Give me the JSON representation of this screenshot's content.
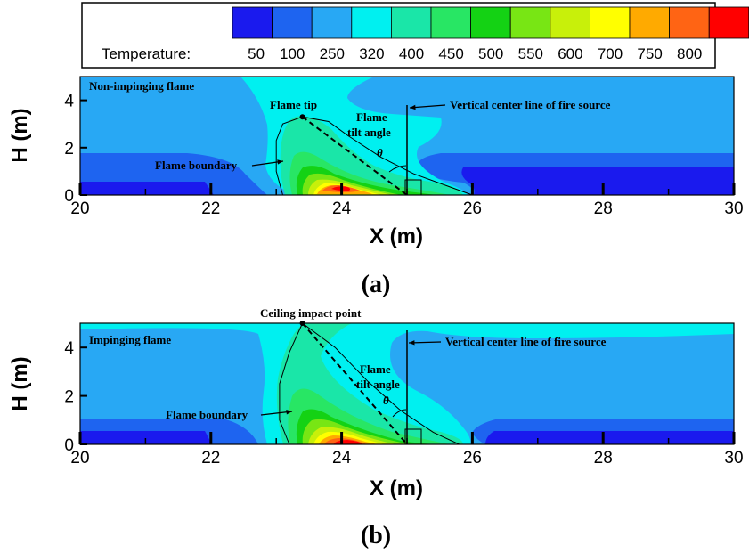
{
  "colorbar": {
    "title": "Temperature:",
    "levels": [
      "50",
      "100",
      "250",
      "320",
      "400",
      "450",
      "500",
      "550",
      "600",
      "700",
      "750",
      "800"
    ],
    "colors": [
      "#1a1aee",
      "#1e64f0",
      "#28a8f4",
      "#00f0f0",
      "#1ae6a8",
      "#28e664",
      "#14d214",
      "#78e614",
      "#c8f00a",
      "#ffff00",
      "#ffaa00",
      "#ff6414",
      "#ff0000"
    ]
  },
  "chart_data": [
    {
      "type": "heatmap",
      "panel_label": "(a)",
      "xlabel": "X (m)",
      "ylabel": "H (m)",
      "xlim": [
        20,
        30
      ],
      "ylim": [
        0,
        5
      ],
      "xticks": [
        "20",
        "22",
        "24",
        "26",
        "28",
        "30"
      ],
      "yticks": [
        "0",
        "2",
        "4"
      ],
      "flame_boundary": [
        [
          23.1,
          0.0
        ],
        [
          23.0,
          1.0
        ],
        [
          23.0,
          2.3
        ],
        [
          23.1,
          3.0
        ],
        [
          23.4,
          3.3
        ],
        [
          23.8,
          3.1
        ],
        [
          24.1,
          2.5
        ],
        [
          24.6,
          1.6
        ],
        [
          25.1,
          0.9
        ],
        [
          25.6,
          0.4
        ],
        [
          26.0,
          0.0
        ]
      ],
      "flame_tip": [
        23.4,
        3.3
      ],
      "tilt_line": [
        [
          23.4,
          3.3
        ],
        [
          25.0,
          0.0
        ]
      ],
      "center_line_x": 25.0,
      "annotations": {
        "flame_type": "Non-impinging flame",
        "tip": "Flame tip",
        "tilt_1": "Flame",
        "tilt_2": "tilt angle",
        "theta": "θ",
        "center_line": "Vertical center line of fire source",
        "boundary": "Flame boundary"
      }
    },
    {
      "type": "heatmap",
      "panel_label": "(b)",
      "xlabel": "X (m)",
      "ylabel": "H (m)",
      "xlim": [
        20,
        30
      ],
      "ylim": [
        0,
        5
      ],
      "xticks": [
        "20",
        "22",
        "24",
        "26",
        "28",
        "30"
      ],
      "yticks": [
        "0",
        "2",
        "4"
      ],
      "flame_boundary": [
        [
          23.2,
          0.0
        ],
        [
          23.05,
          1.0
        ],
        [
          23.05,
          2.5
        ],
        [
          23.2,
          3.8
        ],
        [
          23.4,
          5.0
        ],
        [
          23.9,
          4.0
        ],
        [
          24.4,
          2.6
        ],
        [
          24.9,
          1.4
        ],
        [
          25.4,
          0.5
        ],
        [
          25.8,
          0.0
        ]
      ],
      "flame_tip": [
        23.4,
        5.0
      ],
      "tilt_line": [
        [
          23.4,
          5.0
        ],
        [
          25.0,
          0.0
        ]
      ],
      "center_line_x": 25.0,
      "annotations": {
        "flame_type": "Impinging flame",
        "tip": "Ceiling impact point",
        "tilt_1": "Flame",
        "tilt_2": "tilt angle",
        "theta": "θ",
        "center_line": "Vertical center line of fire source",
        "boundary": "Flame boundary"
      }
    }
  ]
}
